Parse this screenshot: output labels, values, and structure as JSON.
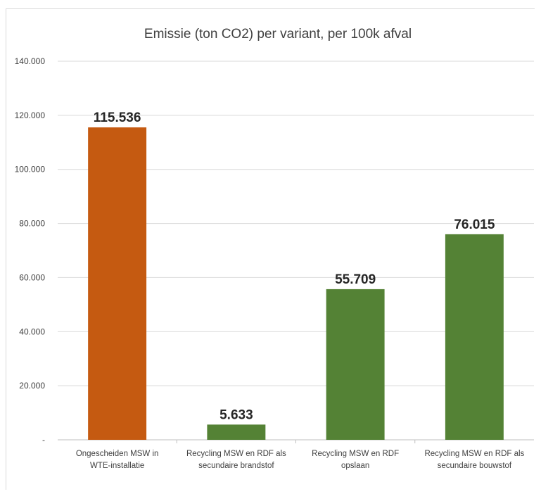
{
  "chart_data": {
    "type": "bar",
    "title": "Emissie (ton CO2) per variant, per 100k afval",
    "xlabel": "",
    "ylabel": "",
    "ylim": [
      0,
      140000
    ],
    "yticks": [
      0,
      20000,
      40000,
      60000,
      80000,
      100000,
      120000,
      140000
    ],
    "ytick_labels": [
      "-",
      "20.000",
      "40.000",
      "60.000",
      "80.000",
      "100.000",
      "120.000",
      "140.000"
    ],
    "grid": true,
    "legend": "none",
    "categories": [
      [
        "Ongescheiden MSW in",
        "WTE-installatie"
      ],
      [
        "Recycling MSW en RDF als",
        "secundaire brandstof"
      ],
      [
        "Recycling MSW en RDF",
        "opslaan"
      ],
      [
        "Recycling MSW en RDF als",
        "secundaire bouwstof"
      ]
    ],
    "values": [
      115536,
      5633,
      55709,
      76015
    ],
    "data_labels": [
      "115.536",
      "5.633",
      "55.709",
      "76.015"
    ],
    "colors": [
      "#c55a11",
      "#548235",
      "#548235",
      "#548235"
    ]
  }
}
